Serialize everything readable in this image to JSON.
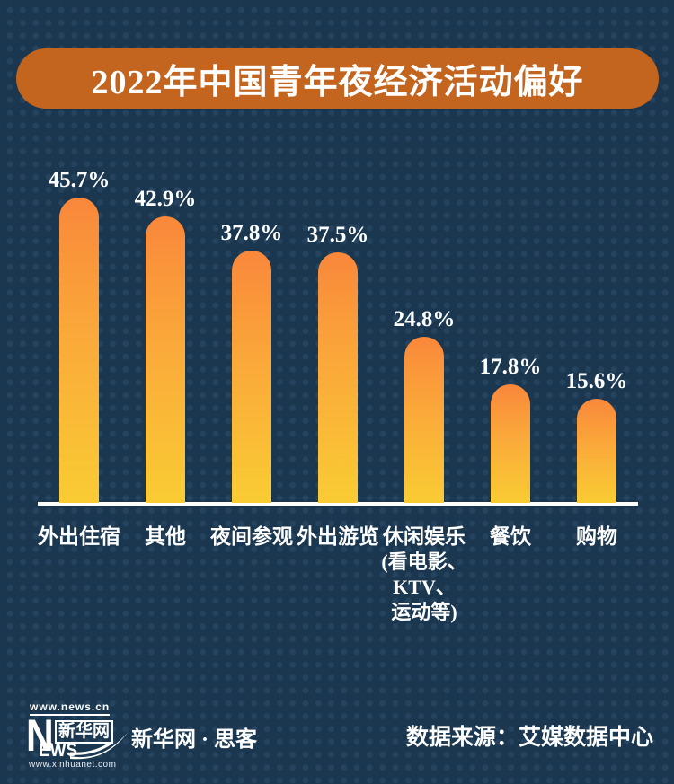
{
  "title": "2022年中国青年夜经济活动偏好",
  "chart_data": {
    "type": "bar",
    "title": "2022年中国青年夜经济活动偏好",
    "categories": [
      "外出住宿",
      "其他",
      "夜间参观",
      "外出游览",
      "休闲娱乐",
      "餐饮",
      "购物"
    ],
    "category_sublabels": [
      [],
      [],
      [],
      [],
      [
        "(看电影、",
        "KTV、",
        "运动等)"
      ],
      [],
      []
    ],
    "values": [
      45.7,
      42.9,
      37.8,
      37.5,
      24.8,
      17.8,
      15.6
    ],
    "value_labels": [
      "45.7%",
      "42.9%",
      "37.8%",
      "37.5%",
      "24.8%",
      "17.8%",
      "15.6%"
    ],
    "xlabel": "",
    "ylabel": "",
    "ylim": [
      0,
      50
    ],
    "grid": "off",
    "legend": "none",
    "bar_color_top": "#f9873b",
    "bar_color_bottom": "#f9cc33",
    "background_color": "#1a374f",
    "baseline_color": "#ffffff"
  },
  "banner": {
    "background_color": "#c4651f",
    "text_color": "#ffffff"
  },
  "footer": {
    "logo": {
      "top_url": "www.news.cn",
      "brand_en_initial": "N",
      "brand_cn": "新华网",
      "brand_en_rest": "EWS",
      "bottom_url": "www.xinhuanet.com"
    },
    "site_label": "新华网 · 思客",
    "source_label": "数据来源：艾媒数据中心"
  }
}
